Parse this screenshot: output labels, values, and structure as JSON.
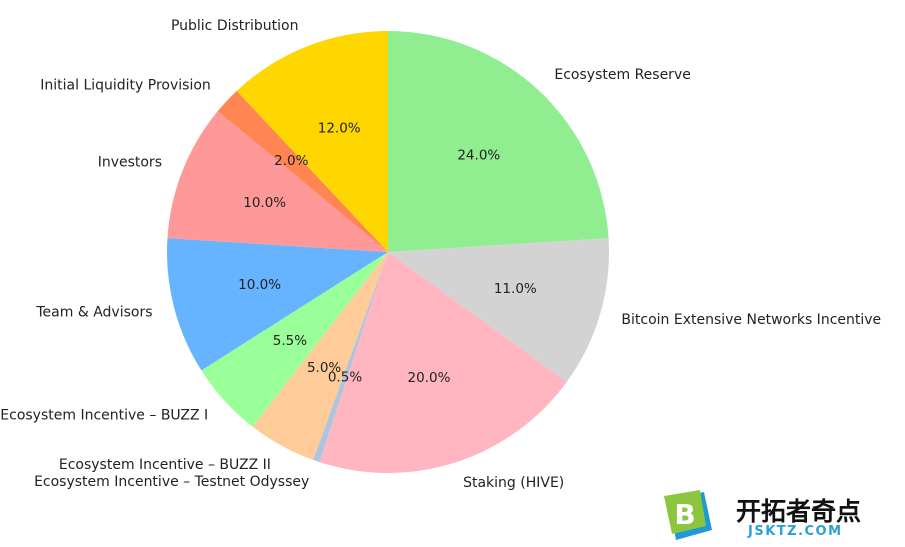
{
  "chart_data": {
    "type": "pie",
    "start_angle_deg": 90,
    "direction": "clockwise",
    "slices": [
      {
        "label": "Ecosystem Reserve",
        "value": 24.0,
        "pct_label": "24.0%",
        "color": "#90EE90"
      },
      {
        "label": "Bitcoin Extensive Networks Incentive",
        "value": 11.0,
        "pct_label": "11.0%",
        "color": "#D3D3D3"
      },
      {
        "label": "Staking (HIVE)",
        "value": 20.0,
        "pct_label": "20.0%",
        "color": "#FFB6C1"
      },
      {
        "label": "Ecosystem Incentive – Testnet Odyssey",
        "value": 0.5,
        "pct_label": "0.5%",
        "color": "#B0C4DE"
      },
      {
        "label": "Ecosystem Incentive – BUZZ II",
        "value": 5.0,
        "pct_label": "5.0%",
        "color": "#FFCC99"
      },
      {
        "label": "Ecosystem Incentive – BUZZ I",
        "value": 5.5,
        "pct_label": "5.5%",
        "color": "#99FF99"
      },
      {
        "label": "Team & Advisors",
        "value": 10.0,
        "pct_label": "10.0%",
        "color": "#66B3FF"
      },
      {
        "label": "Investors",
        "value": 10.0,
        "pct_label": "10.0%",
        "color": "#FF9999"
      },
      {
        "label": "Initial Liquidity Provision",
        "value": 2.0,
        "pct_label": "2.0%",
        "color": "#FF8552"
      },
      {
        "label": "Public Distribution",
        "value": 12.0,
        "pct_label": "12.0%",
        "color": "#FFD700"
      }
    ]
  },
  "watermark": {
    "logo_letter": "B",
    "name": "开拓者奇点",
    "url": "JSKTZ.COM"
  }
}
